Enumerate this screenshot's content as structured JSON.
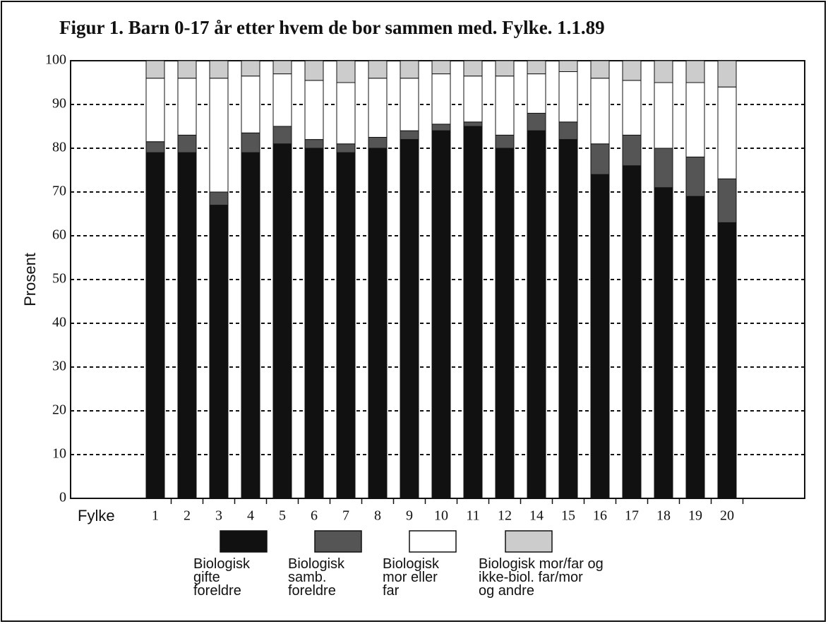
{
  "chart_data": {
    "type": "stacked_bar",
    "title": "Figur 1. Barn 0-17 år etter hvem de bor sammen med. Fylke. 1.1.89",
    "ylabel": "Prosent",
    "xlabel": "Fylke",
    "categories": [
      "1",
      "2",
      "3",
      "4",
      "5",
      "6",
      "7",
      "8",
      "9",
      "10",
      "11",
      "12",
      "14",
      "15",
      "16",
      "17",
      "18",
      "19",
      "20"
    ],
    "series": [
      {
        "name": "Biologisk\ngifte\nforeldre",
        "color": "#111111",
        "values": [
          79,
          79,
          67,
          79,
          81,
          80,
          79,
          80,
          82,
          84,
          85,
          80,
          84,
          82,
          74,
          76,
          71,
          69,
          63
        ]
      },
      {
        "name": "Biologisk\nsamb.\nforeldre",
        "color": "#555555",
        "values": [
          2.5,
          4,
          3,
          4.5,
          4,
          2,
          2,
          2.5,
          2,
          1.5,
          1,
          3,
          4,
          4,
          7,
          7,
          9,
          9,
          10
        ]
      },
      {
        "name": "Biologisk\nmor eller\nfar",
        "color": "#ffffff",
        "values": [
          14.5,
          13,
          26,
          13,
          12,
          13.5,
          14,
          13.5,
          12,
          11.5,
          10.5,
          13.5,
          9,
          11.5,
          15,
          12.5,
          15,
          17,
          21
        ]
      },
      {
        "name": "Biologisk mor/far og\nikke-biol. far/mor\nog andre",
        "color": "#cccccc",
        "values": [
          4,
          4,
          4,
          3.5,
          3,
          4.5,
          5,
          4,
          4,
          3,
          3.5,
          3.5,
          3,
          2.5,
          4,
          4.5,
          5,
          5,
          6
        ]
      }
    ],
    "ylim": [
      0,
      100
    ],
    "yticks": [
      0,
      10,
      20,
      30,
      40,
      50,
      60,
      70,
      80,
      90,
      100
    ],
    "grid": true
  }
}
